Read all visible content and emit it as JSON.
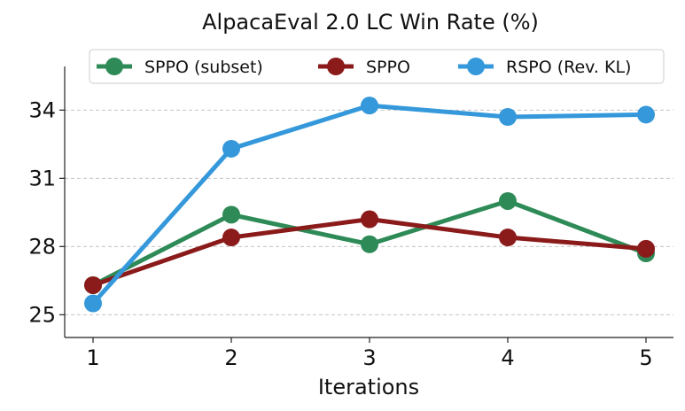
{
  "chart_data": {
    "type": "line",
    "title": "AlpacaEval 2.0 LC Win Rate (%)",
    "xlabel": "Iterations",
    "ylabel": "",
    "x": [
      1,
      2,
      3,
      4,
      5
    ],
    "xticks": [
      "1",
      "2",
      "3",
      "4",
      "5"
    ],
    "yticks": [
      "25",
      "28",
      "31",
      "34"
    ],
    "ylim": [
      24,
      36
    ],
    "grid": "horizontal dashed",
    "legend_position": "top",
    "series": [
      {
        "name": "SPPO (subset)",
        "color": "#2e8b57",
        "values": [
          26.3,
          29.4,
          28.1,
          30.0,
          27.7
        ]
      },
      {
        "name": "SPPO",
        "color": "#8b1a1a",
        "values": [
          26.3,
          28.4,
          29.2,
          28.4,
          27.9
        ]
      },
      {
        "name": "RSPO (Rev. KL)",
        "color": "#3498db",
        "values": [
          25.5,
          32.3,
          34.2,
          33.7,
          33.8
        ]
      }
    ]
  }
}
